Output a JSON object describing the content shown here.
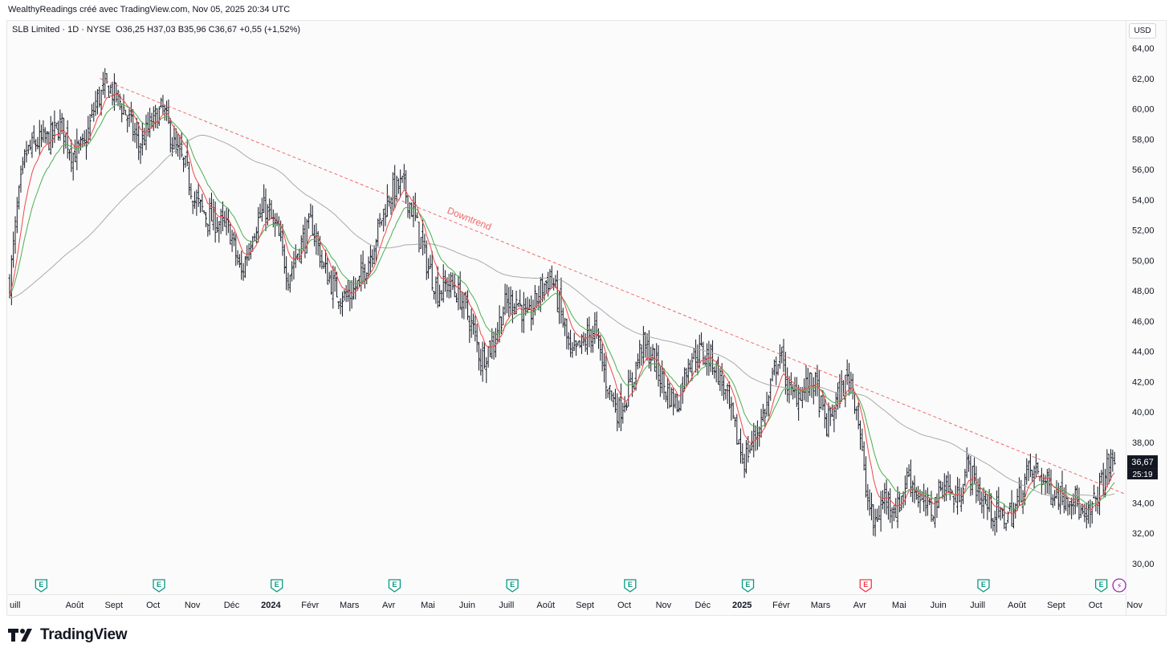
{
  "attribution": "WealthyReadings créé avec TradingView.com, Nov 05, 2025 20:34 UTC",
  "legend": {
    "symbol": "SLB Limited · 1D · NYSE",
    "open": "O36,25",
    "high": "H37,03",
    "low": "B35,96",
    "close": "C36,67",
    "change": "+0,55 (+1,52%)"
  },
  "currency": "USD",
  "last_price_label": "36,67",
  "countdown_label": "25:19",
  "brand": "TradingView",
  "colors": {
    "bar": "#131722",
    "ema_fast": "#f04848",
    "ema_mid": "#4caf50",
    "ma_slow": "#aaaaaa",
    "trendline": "#f06a6a",
    "earnings_badge": "#089981",
    "earnings_badge_upcoming": "#f23645",
    "event_badge": "#9c27b0"
  },
  "icons": {
    "earnings": "earnings-e-icon",
    "event": "lightning-icon",
    "logo": "tradingview-logo-icon"
  },
  "chart_data": {
    "type": "ohlc",
    "title": "SLB Limited · 1D · NYSE",
    "ylim": [
      29,
      65
    ],
    "y_ticks": [
      "64,00",
      "62,00",
      "60,00",
      "58,00",
      "56,00",
      "54,00",
      "52,00",
      "50,00",
      "48,00",
      "46,00",
      "44,00",
      "42,00",
      "40,00",
      "38,00",
      "36,00",
      "34,00",
      "32,00",
      "30,00"
    ],
    "y_tick_values": [
      64,
      62,
      60,
      58,
      56,
      54,
      52,
      50,
      48,
      46,
      44,
      42,
      40,
      38,
      36,
      34,
      32,
      30
    ],
    "x_ticks": [
      {
        "label": "uill",
        "month": 0,
        "bold": false
      },
      {
        "label": "Août",
        "month": 1,
        "bold": false
      },
      {
        "label": "Sept",
        "month": 2,
        "bold": false
      },
      {
        "label": "Oct",
        "month": 3,
        "bold": false
      },
      {
        "label": "Nov",
        "month": 4,
        "bold": false
      },
      {
        "label": "Déc",
        "month": 5,
        "bold": false
      },
      {
        "label": "2024",
        "month": 6,
        "bold": true
      },
      {
        "label": "Févr",
        "month": 7,
        "bold": false
      },
      {
        "label": "Mars",
        "month": 8,
        "bold": false
      },
      {
        "label": "Avr",
        "month": 9,
        "bold": false
      },
      {
        "label": "Mai",
        "month": 10,
        "bold": false
      },
      {
        "label": "Juin",
        "month": 11,
        "bold": false
      },
      {
        "label": "Juill",
        "month": 12,
        "bold": false
      },
      {
        "label": "Août",
        "month": 13,
        "bold": false
      },
      {
        "label": "Sept",
        "month": 14,
        "bold": false
      },
      {
        "label": "Oct",
        "month": 15,
        "bold": false
      },
      {
        "label": "Nov",
        "month": 16,
        "bold": false
      },
      {
        "label": "Déc",
        "month": 17,
        "bold": false
      },
      {
        "label": "2025",
        "month": 18,
        "bold": true
      },
      {
        "label": "Févr",
        "month": 19,
        "bold": false
      },
      {
        "label": "Mars",
        "month": 20,
        "bold": false
      },
      {
        "label": "Avr",
        "month": 21,
        "bold": false
      },
      {
        "label": "Mai",
        "month": 22,
        "bold": false
      },
      {
        "label": "Juin",
        "month": 23,
        "bold": false
      },
      {
        "label": "Juill",
        "month": 24,
        "bold": false
      },
      {
        "label": "Août",
        "month": 25,
        "bold": false
      },
      {
        "label": "Sept",
        "month": 26,
        "bold": false
      },
      {
        "label": "Oct",
        "month": 27,
        "bold": false
      },
      {
        "label": "Nov",
        "month": 28,
        "bold": false
      }
    ],
    "close_path": [
      [
        0,
        48.5
      ],
      [
        0.2,
        53.5
      ],
      [
        0.4,
        57.0
      ],
      [
        0.7,
        57.8
      ],
      [
        1.0,
        58.0
      ],
      [
        1.3,
        59.0
      ],
      [
        1.6,
        57.0
      ],
      [
        1.9,
        57.5
      ],
      [
        2.2,
        60.5
      ],
      [
        2.5,
        61.5
      ],
      [
        2.8,
        60.5
      ],
      [
        3.0,
        59.5
      ],
      [
        3.3,
        57.5
      ],
      [
        3.6,
        59.0
      ],
      [
        3.9,
        60.0
      ],
      [
        4.2,
        57.5
      ],
      [
        4.5,
        56.0
      ],
      [
        4.7,
        54.0
      ],
      [
        5.0,
        53.0
      ],
      [
        5.3,
        52.5
      ],
      [
        5.6,
        52.0
      ],
      [
        5.9,
        49.0
      ],
      [
        6.2,
        52.0
      ],
      [
        6.5,
        53.5
      ],
      [
        6.8,
        52.0
      ],
      [
        7.1,
        49.0
      ],
      [
        7.4,
        51.0
      ],
      [
        7.7,
        52.5
      ],
      [
        8.0,
        49.5
      ],
      [
        8.3,
        48.0
      ],
      [
        8.6,
        47.5
      ],
      [
        8.9,
        48.5
      ],
      [
        9.2,
        50.5
      ],
      [
        9.5,
        53.0
      ],
      [
        9.7,
        54.5
      ],
      [
        10.0,
        55.0
      ],
      [
        10.3,
        53.0
      ],
      [
        10.6,
        50.0
      ],
      [
        10.9,
        48.0
      ],
      [
        11.2,
        48.5
      ],
      [
        11.5,
        47.5
      ],
      [
        11.8,
        45.5
      ],
      [
        12.0,
        43.5
      ],
      [
        12.3,
        44.5
      ],
      [
        12.6,
        47.0
      ],
      [
        12.9,
        47.5
      ],
      [
        13.2,
        46.0
      ],
      [
        13.5,
        48.0
      ],
      [
        13.8,
        49.0
      ],
      [
        14.0,
        47.0
      ],
      [
        14.3,
        43.5
      ],
      [
        14.6,
        44.5
      ],
      [
        14.9,
        45.5
      ],
      [
        15.2,
        42.0
      ],
      [
        15.5,
        40.0
      ],
      [
        15.8,
        41.5
      ],
      [
        16.1,
        44.5
      ],
      [
        16.4,
        43.5
      ],
      [
        16.7,
        41.5
      ],
      [
        17.0,
        40.5
      ],
      [
        17.3,
        43.5
      ],
      [
        17.6,
        44.0
      ],
      [
        17.9,
        43.5
      ],
      [
        18.2,
        41.5
      ],
      [
        18.5,
        38.5
      ],
      [
        18.7,
        36.8
      ],
      [
        19.0,
        38.5
      ],
      [
        19.3,
        40.5
      ],
      [
        19.6,
        44.0
      ],
      [
        19.9,
        41.0
      ],
      [
        20.2,
        41.5
      ],
      [
        20.5,
        42.0
      ],
      [
        20.8,
        39.0
      ],
      [
        21.1,
        41.0
      ],
      [
        21.4,
        42.5
      ],
      [
        21.6,
        40.0
      ],
      [
        21.8,
        35.0
      ],
      [
        22.0,
        32.5
      ],
      [
        22.3,
        34.5
      ],
      [
        22.6,
        33.5
      ],
      [
        22.9,
        36.0
      ],
      [
        23.2,
        34.0
      ],
      [
        23.5,
        33.5
      ],
      [
        23.8,
        35.5
      ],
      [
        24.1,
        34.0
      ],
      [
        24.4,
        36.5
      ],
      [
        24.7,
        34.5
      ],
      [
        25.0,
        33.5
      ],
      [
        25.3,
        33.0
      ],
      [
        25.6,
        33.5
      ],
      [
        25.9,
        36.0
      ],
      [
        26.2,
        36.0
      ],
      [
        26.5,
        35.0
      ],
      [
        26.8,
        34.5
      ],
      [
        27.1,
        34.5
      ],
      [
        27.4,
        32.5
      ],
      [
        27.7,
        34.5
      ],
      [
        28.0,
        36.5
      ],
      [
        28.15,
        36.67
      ]
    ],
    "series": [
      {
        "type": "ohlc-bars",
        "source": "close_path"
      },
      {
        "type": "ema",
        "period": 10
      },
      {
        "type": "ema",
        "period": 20
      },
      {
        "type": "sma",
        "period": 100,
        "start": 47.5
      }
    ],
    "trendline": {
      "label": "Downtrend",
      "x0": 2.3,
      "y0": 62.0,
      "x1": 28.5,
      "y1": 34.5
    },
    "earnings_events": [
      0.6,
      3.6,
      6.6,
      9.6,
      12.6,
      15.6,
      18.6,
      21.6,
      24.6,
      27.6
    ],
    "upcoming_earnings_index": 7,
    "event_marker": {
      "label": "⚡",
      "month": 28.1
    },
    "grid": false
  }
}
